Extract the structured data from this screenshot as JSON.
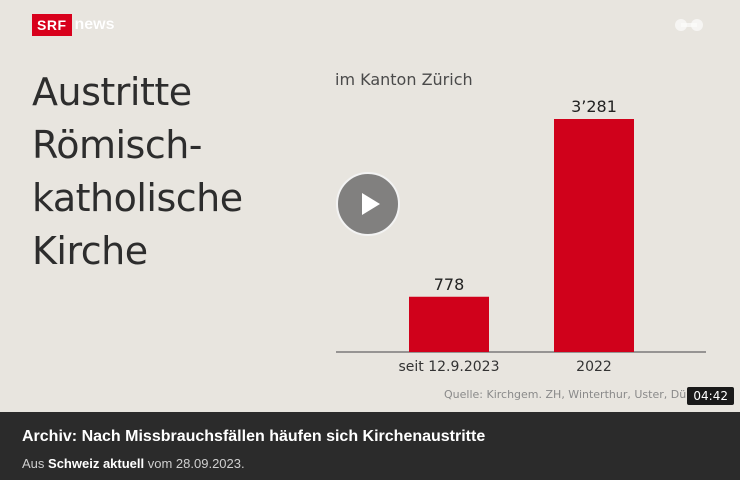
{
  "brand": {
    "logo_srf": "SRF",
    "logo_news": "news",
    "accent": "#d8001c"
  },
  "icons": {
    "share": "share-icon",
    "play": "play-icon"
  },
  "video": {
    "headline_lines": [
      "Austritte",
      "Römisch-",
      "katholische",
      "Kirche"
    ],
    "subtitle": "im Kanton Zürich",
    "source": "Quelle: Kirchgem. ZH, Winterthur, Uster, Dübendorf",
    "duration": "04:42"
  },
  "chart_data": {
    "type": "bar",
    "title": "im Kanton Zürich",
    "categories": [
      "seit 12.9.2023",
      "2022"
    ],
    "values": [
      778,
      3281
    ],
    "value_labels": [
      "778",
      "3’281"
    ],
    "bar_color": "#d0011b",
    "ylim": [
      0,
      3281
    ],
    "grid": false
  },
  "caption": {
    "title": "Archiv: Nach Missbrauchsfällen häufen sich Kirchenaustritte",
    "prefix": "Aus",
    "program": "Schweiz aktuell",
    "suffix": "vom 28.09.2023."
  }
}
